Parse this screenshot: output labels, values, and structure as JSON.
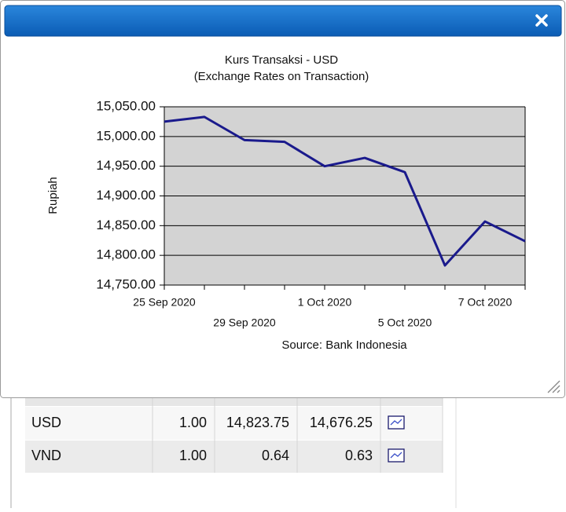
{
  "chart_data": {
    "type": "line",
    "title": "Kurs Transaksi - USD",
    "subtitle": "(Exchange Rates on Transaction)",
    "y_label": "Rupiah",
    "source": "Source: Bank Indonesia",
    "categories": [
      "25 Sep 2020",
      null,
      "29 Sep 2020",
      null,
      "1 Oct 2020",
      null,
      "5 Oct 2020",
      null,
      "7 Oct 2020",
      null
    ],
    "series": [
      {
        "name": "USD",
        "color": "#1a1a8c",
        "values": [
          15025,
          15033,
          14994,
          14991,
          14950,
          14964,
          14940,
          14783,
          14857,
          14823.75
        ]
      }
    ],
    "ylim": [
      14750,
      15050
    ],
    "yticks": [
      {
        "value": 14750,
        "label": "14,750.00"
      },
      {
        "value": 14800,
        "label": "14,800.00"
      },
      {
        "value": 14850,
        "label": "14,850.00"
      },
      {
        "value": 14900,
        "label": "14,900.00"
      },
      {
        "value": 14950,
        "label": "14,950.00"
      },
      {
        "value": 15000,
        "label": "15,000.00"
      },
      {
        "value": 15050,
        "label": "15,050.00"
      }
    ],
    "grid": true
  },
  "table": {
    "rows": [
      [
        "USD",
        "1.00",
        "14,823.75",
        "14,676.25"
      ],
      [
        "VND",
        "1.00",
        "0.64",
        "0.63"
      ]
    ]
  }
}
